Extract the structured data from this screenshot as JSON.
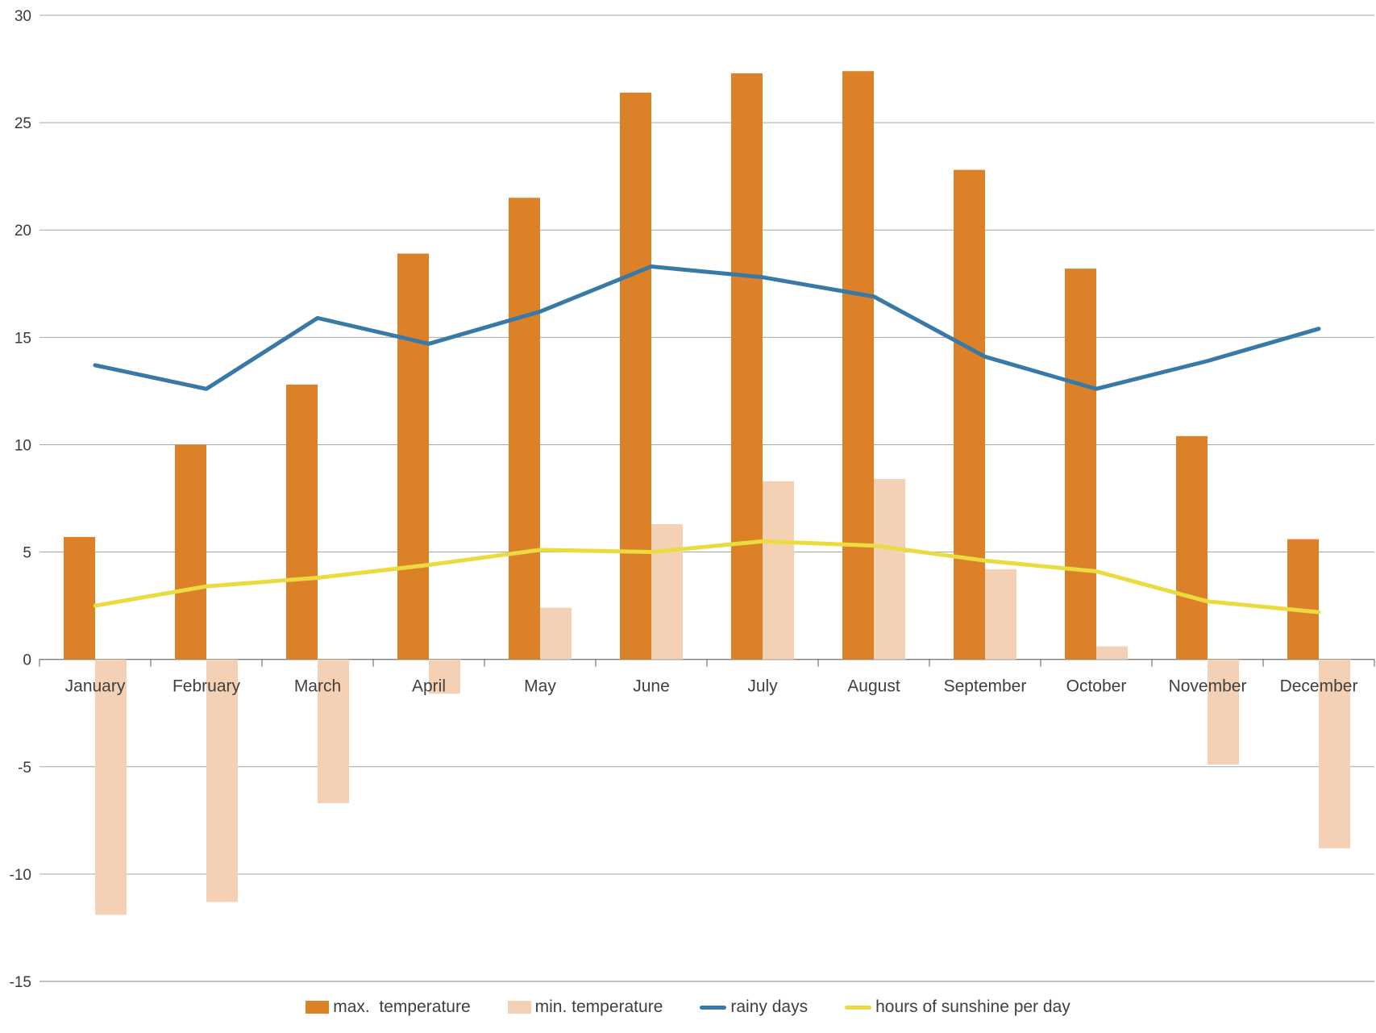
{
  "chart_data": {
    "type": "combo",
    "title": "",
    "categories": [
      "January",
      "February",
      "March",
      "April",
      "May",
      "June",
      "July",
      "August",
      "September",
      "October",
      "November",
      "December"
    ],
    "series": [
      {
        "name": "max.  temperature",
        "type": "bar",
        "color": "#DC8127",
        "values": [
          5.7,
          10.0,
          12.8,
          18.9,
          21.5,
          26.4,
          27.3,
          27.4,
          22.8,
          18.2,
          10.4,
          5.6
        ]
      },
      {
        "name": "min. temperature",
        "type": "bar",
        "color": "#F4D1B4",
        "values": [
          -11.9,
          -11.3,
          -6.7,
          -1.6,
          2.4,
          6.3,
          8.3,
          8.4,
          4.2,
          0.6,
          -4.9,
          -8.8
        ]
      },
      {
        "name": "rainy days",
        "type": "line",
        "color": "#3879A6",
        "values": [
          13.7,
          12.6,
          15.9,
          14.7,
          16.2,
          18.3,
          17.8,
          16.9,
          14.1,
          12.6,
          13.9,
          15.4
        ]
      },
      {
        "name": "hours of sunshine per day",
        "type": "line",
        "color": "#EADC40",
        "values": [
          2.5,
          3.4,
          3.8,
          4.4,
          5.1,
          5.0,
          5.5,
          5.3,
          4.6,
          4.1,
          2.7,
          2.2
        ]
      }
    ],
    "y_axis": {
      "min": -15,
      "max": 30,
      "step": 5,
      "tick_labels": [
        "30",
        "25",
        "20",
        "15",
        "10",
        "5",
        "0",
        "-5",
        "-10",
        "-15"
      ]
    },
    "xlabel": "",
    "ylabel": "",
    "grid": true,
    "legend_position": "bottom",
    "colors": {
      "gridline": "#A6A6A6",
      "axis": "#7F7F7F",
      "text": "#404040",
      "background": "#FFFFFF"
    }
  }
}
